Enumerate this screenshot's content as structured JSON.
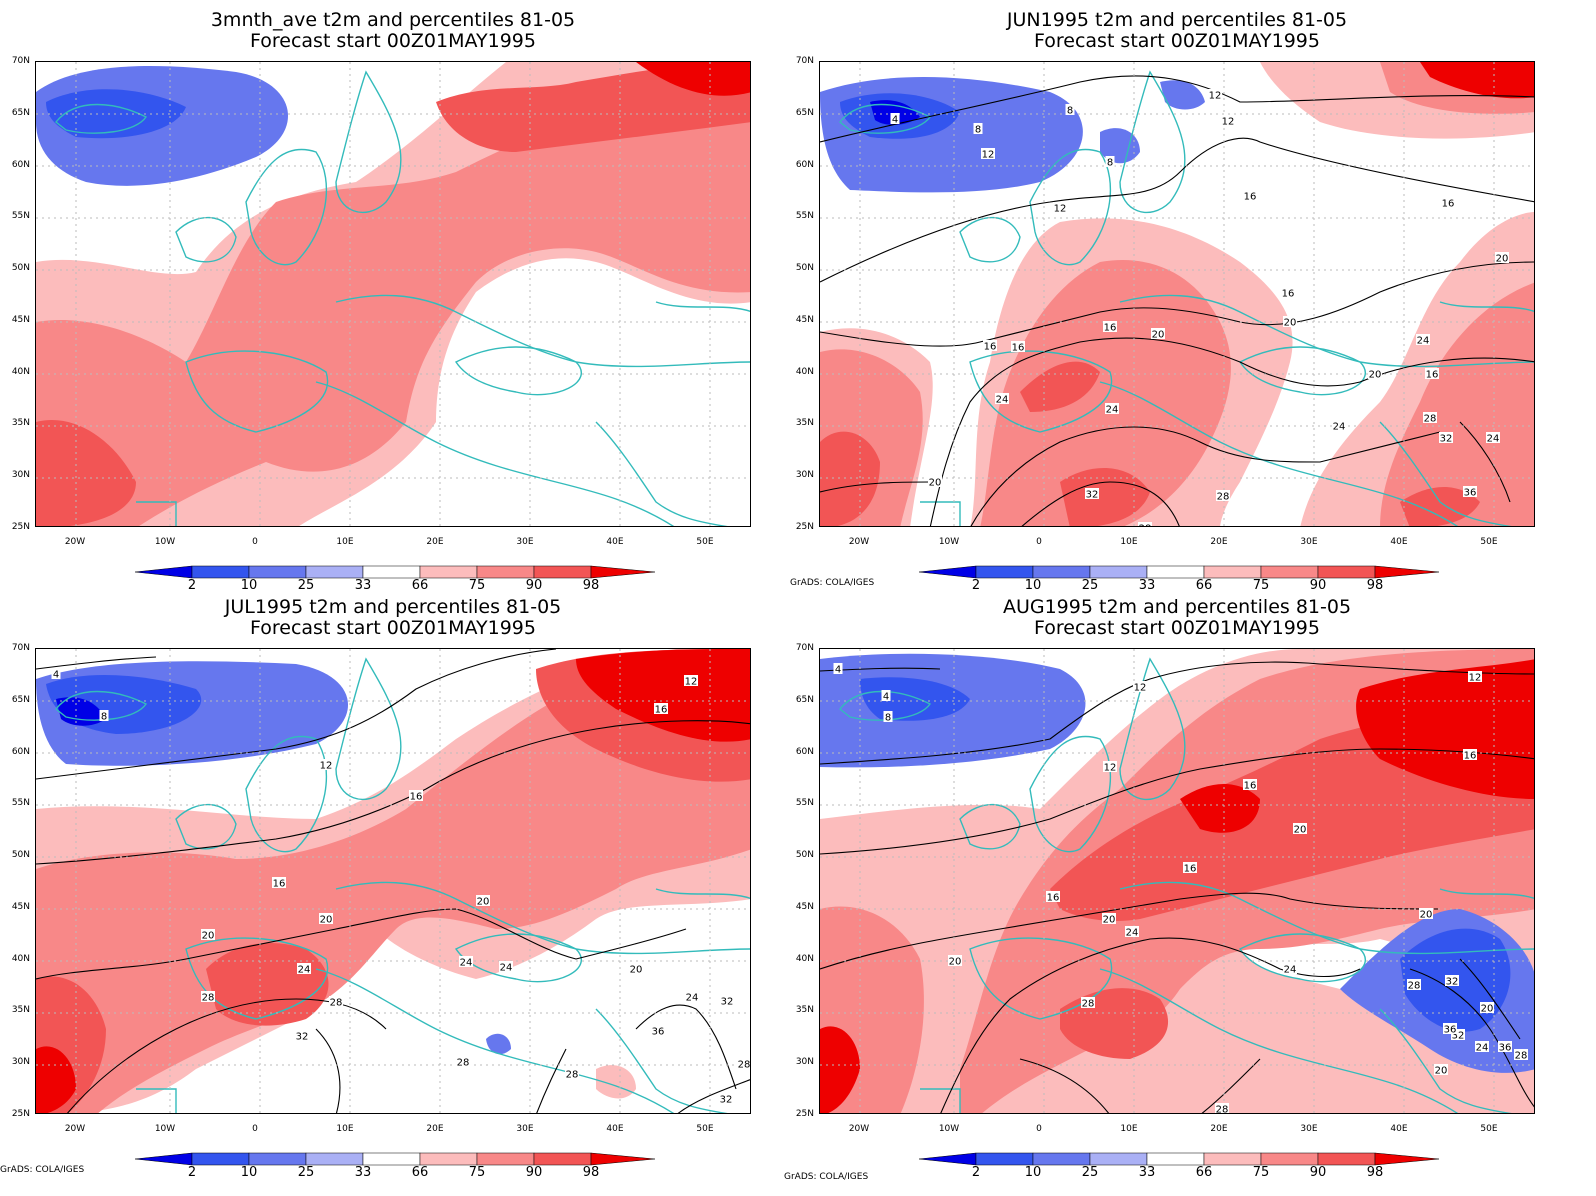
{
  "credit": "GrADS: COLA/IGES",
  "lat_labels": [
    "70N",
    "65N",
    "60N",
    "55N",
    "50N",
    "45N",
    "40N",
    "35N",
    "30N",
    "25N"
  ],
  "lon_labels": [
    "20W",
    "10W",
    "0",
    "10E",
    "20E",
    "30E",
    "40E",
    "50E"
  ],
  "colorbar": {
    "labels": [
      "2",
      "10",
      "25",
      "33",
      "66",
      "75",
      "90",
      "98"
    ],
    "colors": [
      "#0000e6",
      "#3355ee",
      "#6677ee",
      "#aab0f5",
      "#ffffff",
      "#fcbcbc",
      "#f88888",
      "#f25555",
      "#ee0000"
    ]
  },
  "colors": {
    "coast": "#33bbbb",
    "contour": "#000000",
    "grid": "#bbbbbb"
  },
  "panels": [
    {
      "title1": "3mnth_ave t2m and percentiles 81-05",
      "title2": "Forecast start 00Z01MAY1995",
      "contour_labels": []
    },
    {
      "title1": "JUN1995 t2m and percentiles 81-05",
      "title2": "Forecast start 00Z01MAY1995",
      "contour_labels": [
        "8",
        "12",
        "12",
        "4",
        "8",
        "8",
        "12",
        "16",
        "12",
        "16",
        "20",
        "16",
        "16",
        "20",
        "16",
        "16",
        "20",
        "24",
        "16",
        "24",
        "20",
        "24",
        "24",
        "28",
        "32",
        "20",
        "28",
        "28",
        "36",
        "32",
        "24"
      ]
    },
    {
      "title1": "JUL1995 t2m and percentiles 81-05",
      "title2": "Forecast start 00Z01MAY1995",
      "contour_labels": [
        "4",
        "12",
        "8",
        "16",
        "12",
        "16",
        "20",
        "16",
        "20",
        "20",
        "20",
        "24",
        "24",
        "24",
        "28",
        "28",
        "32",
        "28",
        "28",
        "32",
        "36",
        "24",
        "20",
        "28",
        "28",
        "32",
        "32"
      ]
    },
    {
      "title1": "AUG1995 t2m and percentiles 81-05",
      "title2": "Forecast start 00Z01MAY1995",
      "contour_labels": [
        "4",
        "12",
        "4",
        "8",
        "12",
        "12",
        "16",
        "16",
        "16",
        "20",
        "16",
        "20",
        "20",
        "20",
        "24",
        "24",
        "28",
        "20",
        "28",
        "28",
        "32",
        "20",
        "24",
        "36",
        "36",
        "32",
        "28"
      ]
    }
  ]
}
